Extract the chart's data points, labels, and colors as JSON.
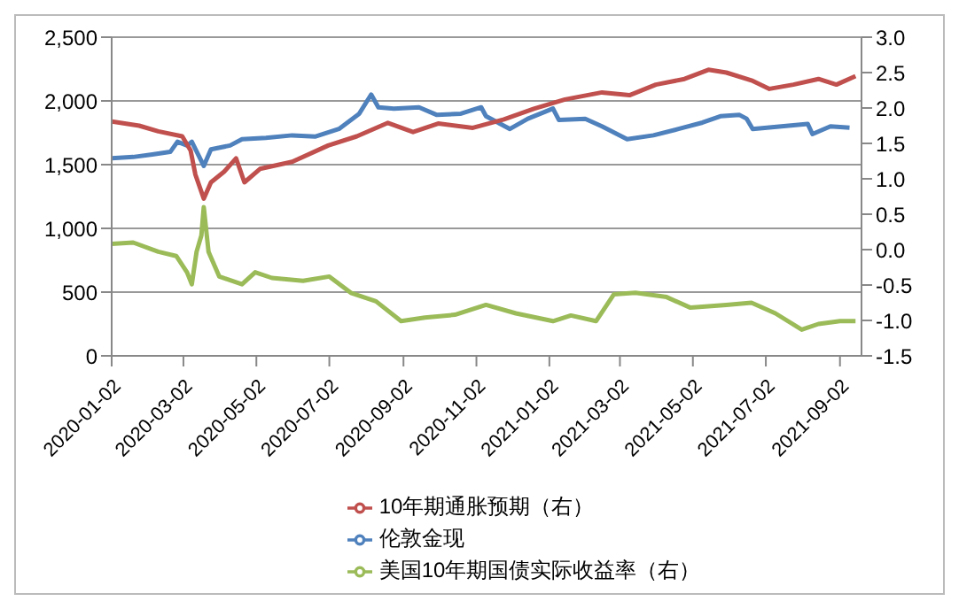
{
  "chart_data": {
    "type": "line",
    "xlim": [
      "2020-01-02",
      "2021-09-20"
    ],
    "xticks": [
      "2020-01-02",
      "2020-03-02",
      "2020-05-02",
      "2020-07-02",
      "2020-09-02",
      "2020-11-02",
      "2021-01-02",
      "2021-03-02",
      "2021-05-02",
      "2021-07-02",
      "2021-09-02"
    ],
    "ylim": [
      0,
      2500
    ],
    "yticks": [
      {
        "value": 0,
        "label": "0"
      },
      {
        "value": 500,
        "label": "500"
      },
      {
        "value": 1000,
        "label": "1,000"
      },
      {
        "value": 1500,
        "label": "1,500"
      },
      {
        "value": 2000,
        "label": "2,000"
      },
      {
        "value": 2500,
        "label": "2,500"
      }
    ],
    "y2lim": [
      -1.5,
      3.0
    ],
    "y2ticks": [
      {
        "value": -1.5,
        "label": "-1.5"
      },
      {
        "value": -1,
        "label": "-1.0"
      },
      {
        "value": -0.5,
        "label": "-0.5"
      },
      {
        "value": 0,
        "label": "0.0"
      },
      {
        "value": 0.5,
        "label": "0.5"
      },
      {
        "value": 1,
        "label": "1.0"
      },
      {
        "value": 1.5,
        "label": "1.5"
      },
      {
        "value": 2,
        "label": "2.0"
      },
      {
        "value": 2.5,
        "label": "2.5"
      },
      {
        "value": 3,
        "label": "3.0"
      }
    ],
    "grid": "y",
    "legend": "bottom",
    "marker": "none",
    "line_style": "solid",
    "series": [
      {
        "name": "伦敦金现",
        "color": "#4f81bd",
        "x": [
          "2020-01-02",
          "2020-01-20",
          "2020-02-05",
          "2020-02-20",
          "2020-02-26",
          "2020-03-05",
          "2020-03-09",
          "2020-03-19",
          "2020-03-25",
          "2020-04-10",
          "2020-04-20",
          "2020-05-10",
          "2020-06-01",
          "2020-06-20",
          "2020-07-10",
          "2020-07-27",
          "2020-08-06",
          "2020-08-12",
          "2020-08-25",
          "2020-09-15",
          "2020-09-30",
          "2020-10-20",
          "2020-11-06",
          "2020-11-10",
          "2020-11-30",
          "2020-12-15",
          "2021-01-05",
          "2021-01-10",
          "2021-02-01",
          "2021-02-15",
          "2021-03-08",
          "2021-03-30",
          "2021-04-20",
          "2021-05-10",
          "2021-05-25",
          "2021-06-10",
          "2021-06-16",
          "2021-06-21",
          "2021-07-15",
          "2021-08-06",
          "2021-08-10",
          "2021-08-25",
          "2021-09-10"
        ],
        "values": [
          1550,
          1560,
          1580,
          1600,
          1680,
          1650,
          1680,
          1490,
          1620,
          1650,
          1700,
          1710,
          1730,
          1720,
          1780,
          1900,
          2050,
          1950,
          1940,
          1950,
          1890,
          1900,
          1950,
          1880,
          1780,
          1860,
          1940,
          1850,
          1860,
          1800,
          1700,
          1730,
          1780,
          1830,
          1880,
          1890,
          1860,
          1780,
          1800,
          1820,
          1740,
          1800,
          1790
        ]
      },
      {
        "name": "10年期通胀预期（右）",
        "color": "#c0504d",
        "axis": "y2",
        "x": [
          "2020-01-02",
          "2020-01-25",
          "2020-02-10",
          "2020-03-01",
          "2020-03-08",
          "2020-03-12",
          "2020-03-19",
          "2020-03-25",
          "2020-04-05",
          "2020-04-15",
          "2020-04-22",
          "2020-05-05",
          "2020-06-01",
          "2020-07-01",
          "2020-07-25",
          "2020-08-20",
          "2020-09-10",
          "2020-10-01",
          "2020-10-30",
          "2020-11-25",
          "2020-12-20",
          "2021-01-15",
          "2021-02-15",
          "2021-03-10",
          "2021-04-01",
          "2021-04-25",
          "2021-05-15",
          "2021-05-30",
          "2021-06-20",
          "2021-07-05",
          "2021-07-25",
          "2021-08-15",
          "2021-08-30",
          "2021-09-15"
        ],
        "values": [
          1.81,
          1.75,
          1.67,
          1.6,
          1.4,
          1.06,
          0.72,
          0.95,
          1.1,
          1.29,
          0.95,
          1.14,
          1.24,
          1.47,
          1.6,
          1.79,
          1.66,
          1.78,
          1.72,
          1.84,
          1.99,
          2.12,
          2.22,
          2.18,
          2.33,
          2.41,
          2.54,
          2.5,
          2.39,
          2.27,
          2.33,
          2.41,
          2.33,
          2.45
        ]
      },
      {
        "name": "美国10年期国债实际收益率（右）",
        "color": "#9bbb59",
        "axis": "y2",
        "x": [
          "2020-01-02",
          "2020-01-20",
          "2020-02-10",
          "2020-02-25",
          "2020-03-05",
          "2020-03-09",
          "2020-03-13",
          "2020-03-17",
          "2020-03-19",
          "2020-03-23",
          "2020-04-01",
          "2020-04-20",
          "2020-05-01",
          "2020-05-15",
          "2020-06-10",
          "2020-07-02",
          "2020-07-20",
          "2020-08-10",
          "2020-08-31",
          "2020-09-20",
          "2020-10-15",
          "2020-11-10",
          "2020-12-05",
          "2021-01-05",
          "2021-01-20",
          "2021-02-10",
          "2021-02-25",
          "2021-03-15",
          "2021-04-10",
          "2021-04-30",
          "2021-05-30",
          "2021-06-20",
          "2021-07-10",
          "2021-08-01",
          "2021-08-15",
          "2021-09-02",
          "2021-09-15"
        ],
        "values": [
          0.08,
          0.1,
          -0.03,
          -0.09,
          -0.32,
          -0.49,
          -0.03,
          0.2,
          0.6,
          -0.03,
          -0.38,
          -0.49,
          -0.32,
          -0.4,
          -0.44,
          -0.38,
          -0.61,
          -0.73,
          -1.01,
          -0.96,
          -0.92,
          -0.78,
          -0.9,
          -1.01,
          -0.93,
          -1.01,
          -0.63,
          -0.61,
          -0.67,
          -0.82,
          -0.78,
          -0.75,
          -0.9,
          -1.13,
          -1.05,
          -1.01,
          -1.01
        ]
      }
    ]
  }
}
